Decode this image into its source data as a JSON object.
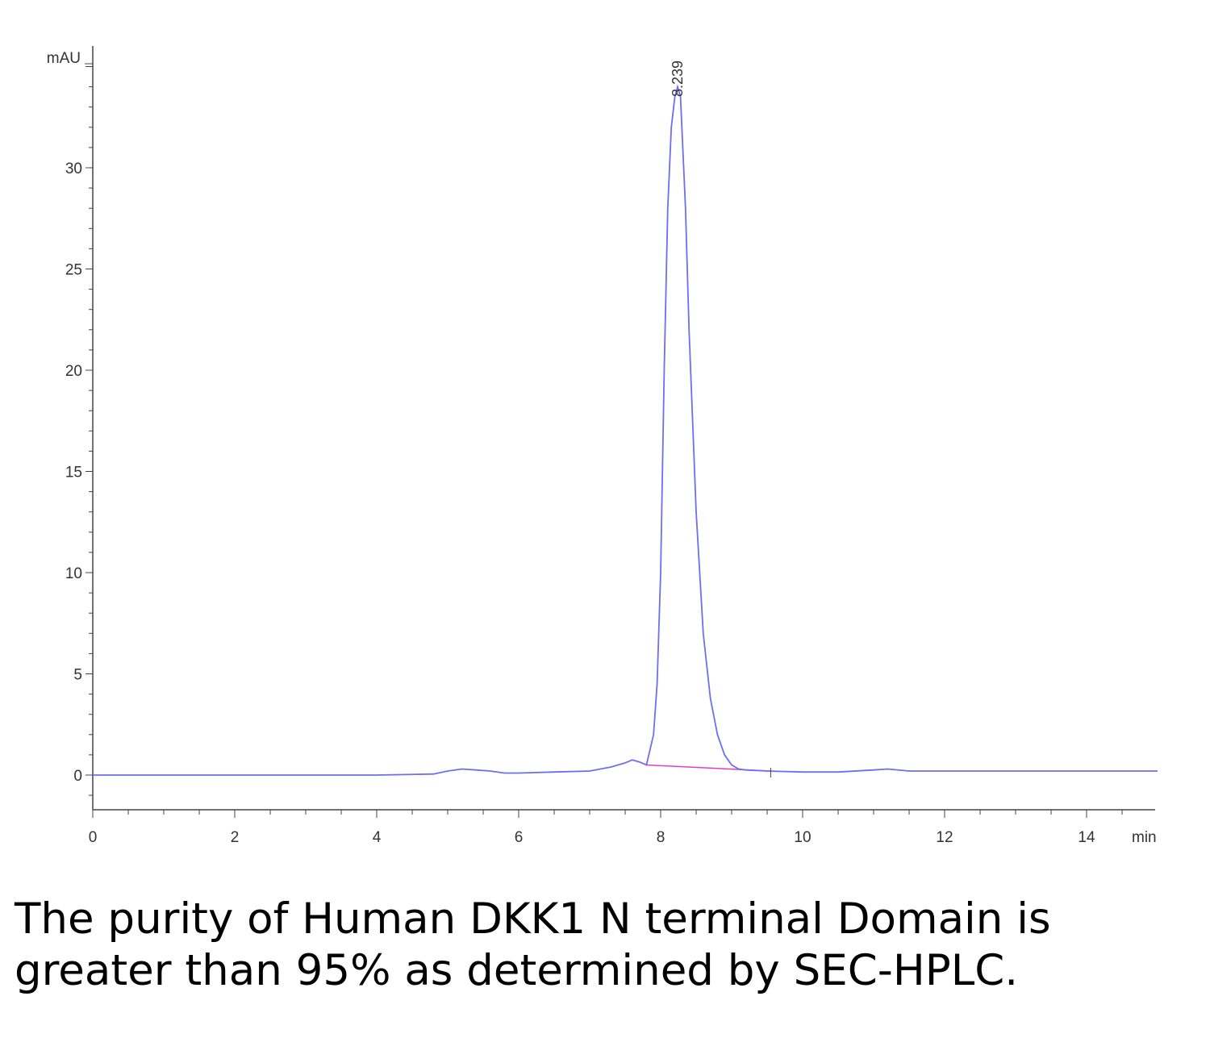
{
  "colors": {
    "trace": "#6e6ef0",
    "baseline": "#e23ccf",
    "axis": "#444444"
  },
  "caption": "The purity of Human DKK1 N terminal Domain is greater than 95% as determined by SEC-HPLC.",
  "chart_data": {
    "type": "line",
    "title": "",
    "xlabel": "min",
    "ylabel": "mAU",
    "xlim": [
      0,
      15
    ],
    "ylim": [
      -1.7,
      36
    ],
    "xticks": [
      0,
      2,
      4,
      6,
      8,
      10,
      12,
      14
    ],
    "yticks": [
      0,
      5,
      10,
      15,
      20,
      25,
      30
    ],
    "grid": false,
    "series": [
      {
        "x": [
          0,
          1,
          2,
          3,
          4,
          4.8,
          5.0,
          5.2,
          5.4,
          5.6,
          5.8,
          6.0,
          6.5,
          7.0,
          7.3,
          7.5,
          7.6,
          7.7,
          7.8,
          7.9,
          7.95,
          8.0,
          8.05,
          8.1,
          8.15,
          8.2,
          8.239,
          8.28,
          8.35,
          8.4,
          8.5,
          8.6,
          8.7,
          8.8,
          8.9,
          9.0,
          9.1,
          9.2,
          9.5,
          10,
          10.5,
          11,
          11.2,
          11.5,
          12,
          13,
          14,
          15
        ],
        "y": [
          0,
          0,
          0,
          0,
          0,
          0.05,
          0.2,
          0.3,
          0.25,
          0.2,
          0.1,
          0.1,
          0.15,
          0.2,
          0.4,
          0.6,
          0.75,
          0.65,
          0.5,
          2.0,
          4.5,
          10,
          20,
          28,
          32,
          33.5,
          34,
          33.5,
          28,
          22,
          13,
          7,
          3.8,
          2.0,
          1.0,
          0.5,
          0.3,
          0.25,
          0.2,
          0.15,
          0.15,
          0.25,
          0.3,
          0.2,
          0.2,
          0.2,
          0.2,
          0.2
        ]
      }
    ],
    "integration_baseline": {
      "x": [
        7.8,
        9.55
      ],
      "y": [
        0.5,
        0.2
      ]
    },
    "peaks": [
      {
        "x": 8.239,
        "label": "8.239"
      }
    ]
  }
}
